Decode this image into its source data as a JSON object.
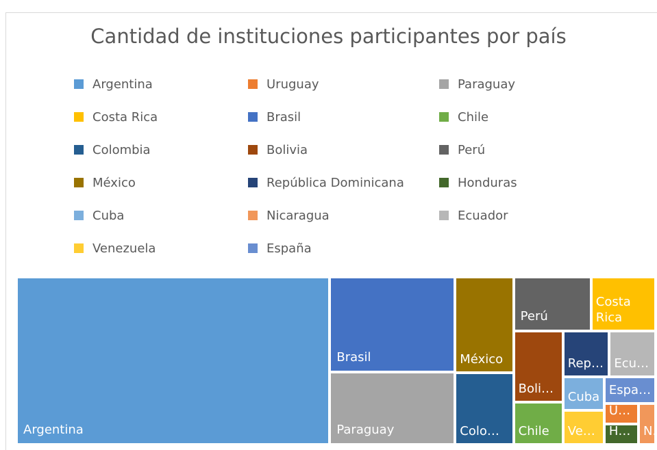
{
  "chart_data": {
    "type": "treemap",
    "title": "Cantidad de instituciones participantes por país",
    "categories": [
      "Argentina",
      "Uruguay",
      "Paraguay",
      "Costa Rica",
      "Brasil",
      "Chile",
      "Colombia",
      "Bolivia",
      "Perú",
      "México",
      "República Dominicana",
      "Honduras",
      "Cuba",
      "Nicaragua",
      "Ecuador",
      "Venezuela",
      "España"
    ],
    "values": [
      75,
      1,
      13,
      5,
      17,
      3,
      6,
      5,
      6,
      8,
      3,
      1,
      2,
      1,
      3,
      2,
      2
    ],
    "colors": [
      "#5b9bd5",
      "#ed7d31",
      "#a5a5a5",
      "#ffc000",
      "#4472c4",
      "#70ad47",
      "#255e91",
      "#9e480e",
      "#636363",
      "#997300",
      "#264478",
      "#43682b",
      "#7cafdd",
      "#f1975a",
      "#b7b7b7",
      "#ffcd33",
      "#698ed0"
    ],
    "legend": "top"
  }
}
